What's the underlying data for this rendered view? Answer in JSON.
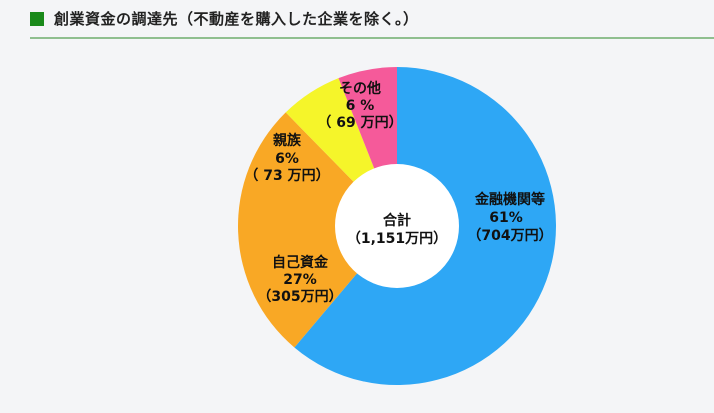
{
  "header": {
    "title": "創業資金の調達先（不動産を購入した企業を除く。）"
  },
  "colors": {
    "title_square": "#1a8a1a",
    "rule": "#8fbf8f",
    "background": "#f4f5f7"
  },
  "chart_data": {
    "type": "pie",
    "subtype": "donut",
    "title": "創業資金の調達先（不動産を購入した企業を除く。）",
    "center_label": {
      "line1": "合計",
      "line2": "（1,151万円）"
    },
    "total": 1151,
    "unit": "万円",
    "slices": [
      {
        "name": "金融機関等",
        "percent": 61,
        "value": 704,
        "value_label": "（704万円）",
        "pct_label": "61%",
        "color": "#2ea7f5"
      },
      {
        "name": "自己資金",
        "percent": 27,
        "value": 305,
        "value_label": "（305万円）",
        "pct_label": "27%",
        "color": "#f9a825"
      },
      {
        "name": "親族",
        "percent": 6,
        "value": 73,
        "value_label": "（ 73 万円）",
        "pct_label": "6%",
        "color": "#f5f52a"
      },
      {
        "name": "その他",
        "percent": 6,
        "value": 69,
        "value_label": "（ 69 万円）",
        "pct_label": "6 %",
        "color": "#f55a9a"
      }
    ],
    "legend": "none"
  }
}
